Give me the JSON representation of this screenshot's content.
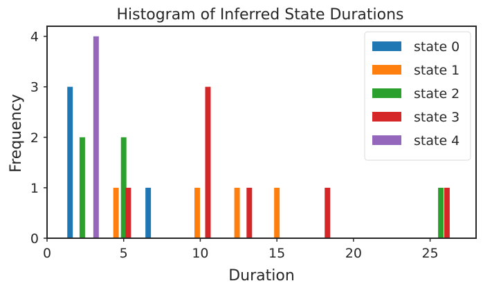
{
  "chart_data": {
    "type": "bar",
    "title": "Histogram of Inferred State Durations",
    "xlabel": "Duration",
    "ylabel": "Frequency",
    "xlim": [
      0,
      28
    ],
    "ylim": [
      0,
      4.2
    ],
    "xticks": [
      0,
      5,
      10,
      15,
      20,
      25
    ],
    "yticks": [
      0,
      1,
      2,
      3,
      4
    ],
    "grid": false,
    "legend_position": "top-right",
    "bar_width": 0.36,
    "series": [
      {
        "name": "state 0",
        "color": "#1f77b4",
        "x": [
          1.5,
          6.6
        ],
        "values": [
          3,
          1
        ]
      },
      {
        "name": "state 1",
        "color": "#ff7f0e",
        "x": [
          4.5,
          9.8,
          12.4,
          15.0
        ],
        "values": [
          1,
          1,
          1,
          1
        ]
      },
      {
        "name": "state 2",
        "color": "#2ca02c",
        "x": [
          2.3,
          5.0,
          25.7
        ],
        "values": [
          2,
          2,
          1
        ]
      },
      {
        "name": "state 3",
        "color": "#d62728",
        "x": [
          5.3,
          10.5,
          13.2,
          18.3,
          26.1
        ],
        "values": [
          1,
          3,
          1,
          1,
          1
        ]
      },
      {
        "name": "state 4",
        "color": "#9467bd",
        "x": [
          3.2
        ],
        "values": [
          4
        ]
      }
    ]
  }
}
